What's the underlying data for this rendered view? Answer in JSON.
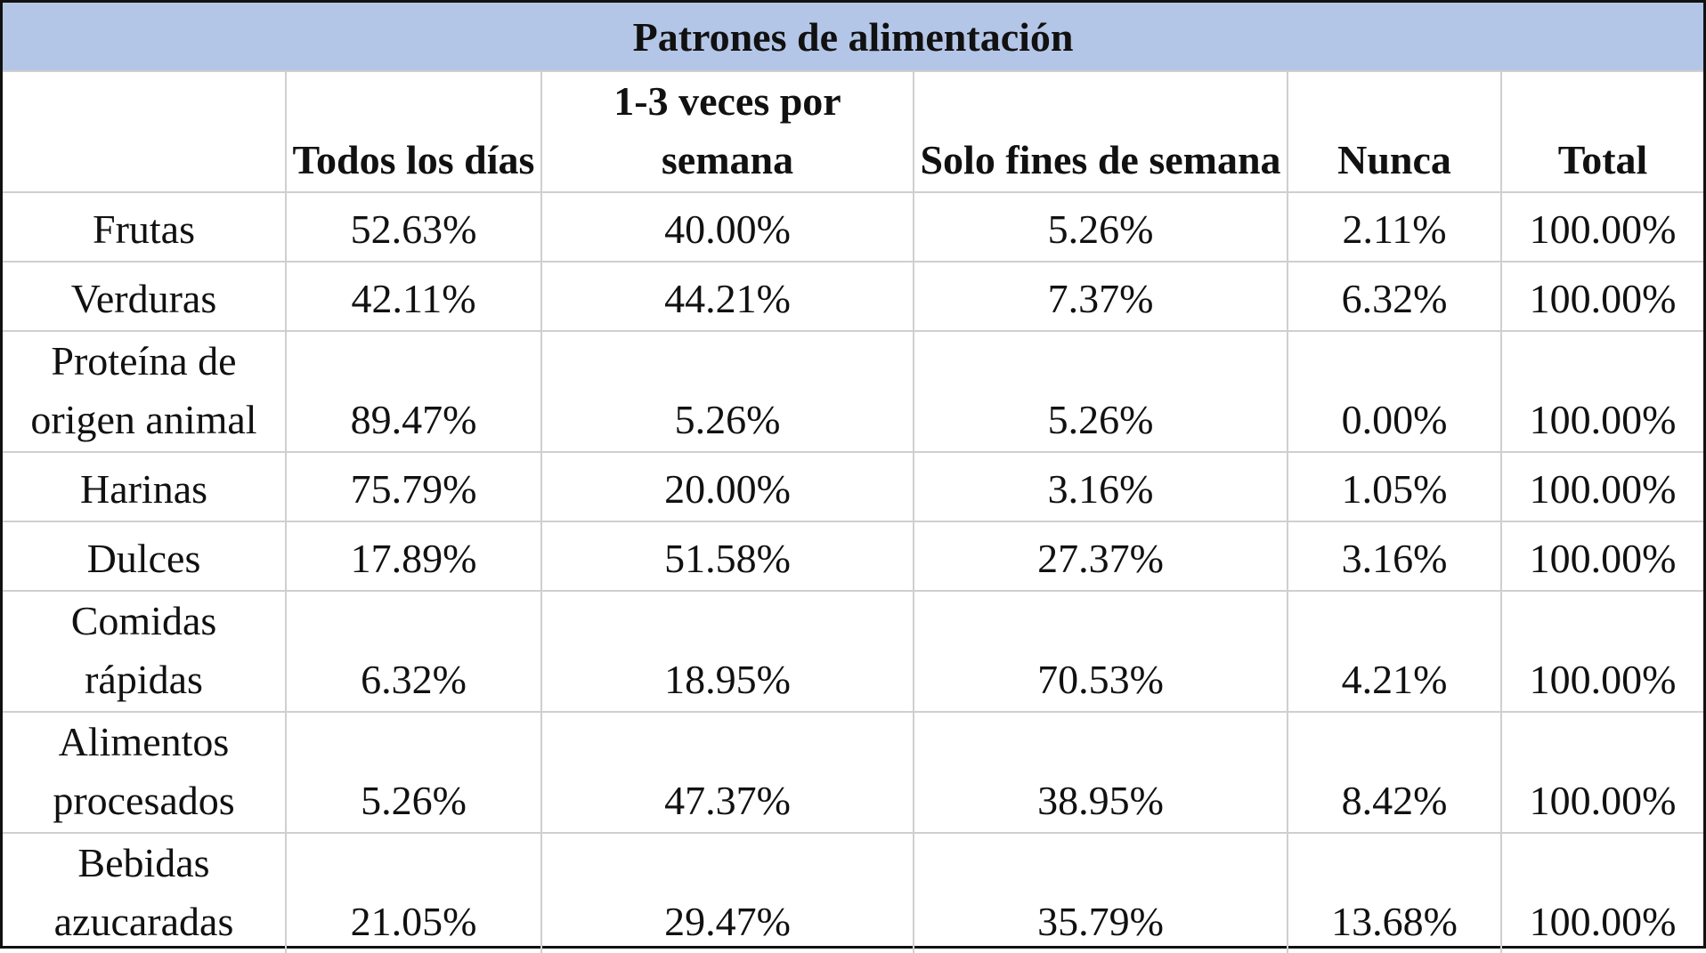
{
  "table": {
    "title": "Patrones de alimentación",
    "columns": [
      "",
      "Todos los días",
      "1-3 veces por semana",
      "Solo fines de semana",
      "Nunca",
      "Total"
    ],
    "rows": [
      {
        "label": "Frutas",
        "values": [
          "52.63%",
          "40.00%",
          "5.26%",
          "2.11%",
          "100.00%"
        ]
      },
      {
        "label": "Verduras",
        "values": [
          "42.11%",
          "44.21%",
          "7.37%",
          "6.32%",
          "100.00%"
        ]
      },
      {
        "label": "Proteína de origen animal",
        "values": [
          "89.47%",
          "5.26%",
          "5.26%",
          "0.00%",
          "100.00%"
        ]
      },
      {
        "label": "Harinas",
        "values": [
          "75.79%",
          "20.00%",
          "3.16%",
          "1.05%",
          "100.00%"
        ]
      },
      {
        "label": "Dulces",
        "values": [
          "17.89%",
          "51.58%",
          "27.37%",
          "3.16%",
          "100.00%"
        ]
      },
      {
        "label": "Comidas rápidas",
        "values": [
          "6.32%",
          "18.95%",
          "70.53%",
          "4.21%",
          "100.00%"
        ]
      },
      {
        "label": "Alimentos procesados",
        "values": [
          "5.26%",
          "47.37%",
          "38.95%",
          "8.42%",
          "100.00%"
        ]
      },
      {
        "label": "Bebidas azucaradas",
        "values": [
          "21.05%",
          "29.47%",
          "35.79%",
          "13.68%",
          "100.00%"
        ]
      }
    ]
  },
  "colors": {
    "title_background": "#b4c6e7",
    "grid": "#cfcfcf",
    "outer_border": "#111111",
    "text": "#111111"
  }
}
